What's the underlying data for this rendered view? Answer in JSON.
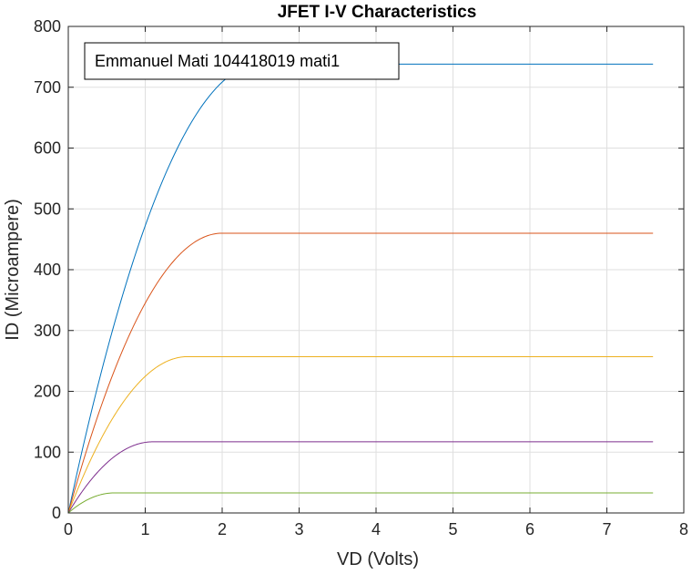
{
  "chart_data": {
    "type": "line",
    "title": "JFET I-V Characteristics",
    "xlabel": "VD (Volts)",
    "ylabel": "ID (Microampere)",
    "xlim": [
      0,
      8
    ],
    "ylim": [
      0,
      800
    ],
    "xticks": [
      0,
      1,
      2,
      3,
      4,
      5,
      6,
      7,
      8
    ],
    "yticks": [
      0,
      100,
      200,
      300,
      400,
      500,
      600,
      700,
      800
    ],
    "grid": true,
    "legend_text": "Emmanuel Mati 104418019 mati1",
    "legend_position": "top-left",
    "x_max_plotted": 7.6,
    "series": [
      {
        "color": "#0072BD",
        "vsat": 2.5,
        "isat": 738
      },
      {
        "color": "#D95319",
        "vsat": 2.0,
        "isat": 460
      },
      {
        "color": "#EDB120",
        "vsat": 1.55,
        "isat": 257
      },
      {
        "color": "#7E2F8E",
        "vsat": 1.1,
        "isat": 117
      },
      {
        "color": "#77AC30",
        "vsat": 0.6,
        "isat": 33
      }
    ]
  }
}
